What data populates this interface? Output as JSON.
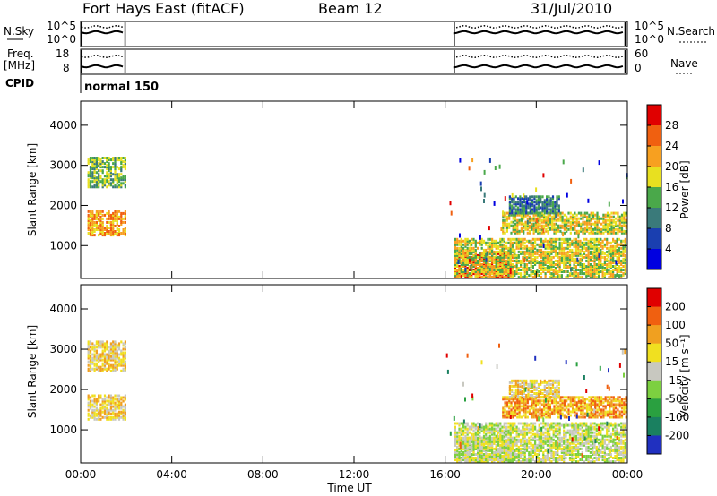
{
  "header": {
    "title": "Fort Hays East (fitACF)",
    "beam": "Beam 12",
    "date": "31/Jul/2010"
  },
  "top_panels": {
    "nsky_label": "N.Sky",
    "nsearch_label": "N.Search",
    "noise_ticks": [
      "10^5",
      "10^0"
    ],
    "freq_label": "Freq.",
    "freq_unit": "[MHz]",
    "freq_ticks": [
      "18",
      "8"
    ],
    "nave_label": "Nave",
    "nave_ticks": [
      "60",
      "0"
    ],
    "cpid_label": "CPID",
    "cpid_value": "normal 150"
  },
  "chart_data": [
    {
      "type": "heatmap",
      "title": "",
      "ylabel": "Slant Range [km]",
      "xlabel": "",
      "x_ticks": [
        "00:00",
        "04:00",
        "08:00",
        "12:00",
        "16:00",
        "20:00",
        "00:00"
      ],
      "y_ticks": [
        1000,
        2000,
        3000,
        4000
      ],
      "xlim_hours": [
        0,
        24
      ],
      "ylim": [
        180,
        4600
      ],
      "colorbar_label": "Power [dB]",
      "colorbar_ticks": [
        4,
        8,
        12,
        16,
        20,
        24,
        28
      ],
      "colorbar_colors": [
        "#0000e0",
        "#1a3fb0",
        "#3a7a7a",
        "#4aa84a",
        "#e8e020",
        "#f7a020",
        "#f06010",
        "#e00000"
      ],
      "echo_regions": [
        {
          "t": [
            0.3,
            2.0
          ],
          "range": [
            1250,
            1850
          ],
          "level": 5
        },
        {
          "t": [
            0.3,
            2.0
          ],
          "range": [
            2450,
            3200
          ],
          "level": 3
        },
        {
          "t": [
            16.4,
            19.0
          ],
          "range": [
            200,
            800
          ],
          "level": 7
        },
        {
          "t": [
            16.4,
            23.9
          ],
          "range": [
            200,
            1150
          ],
          "level": 4
        },
        {
          "t": [
            18.5,
            23.9
          ],
          "range": [
            1300,
            1800
          ],
          "level": 4
        },
        {
          "t": [
            18.8,
            21.0
          ],
          "range": [
            1800,
            2250
          ],
          "level": 2
        }
      ]
    },
    {
      "type": "heatmap",
      "title": "",
      "ylabel": "Slant Range [km]",
      "xlabel": "Time UT",
      "x_ticks": [
        "00:00",
        "04:00",
        "08:00",
        "12:00",
        "16:00",
        "20:00",
        "00:00"
      ],
      "y_ticks": [
        1000,
        2000,
        3000,
        4000
      ],
      "xlim_hours": [
        0,
        24
      ],
      "ylim": [
        180,
        4600
      ],
      "colorbar_label": "Velocity [m s⁻¹]",
      "colorbar_ticks": [
        200,
        100,
        50,
        15,
        -15,
        -50,
        -100,
        -200
      ],
      "colorbar_colors": [
        "#2030c0",
        "#1a8060",
        "#2aa040",
        "#7cd040",
        "#c8c8c0",
        "#f0e020",
        "#f0a020",
        "#f06010",
        "#e00000"
      ],
      "echo_regions": [
        {
          "t": [
            0.3,
            2.0
          ],
          "range": [
            1250,
            1850
          ],
          "level": 5
        },
        {
          "t": [
            0.3,
            2.0
          ],
          "range": [
            2450,
            3200
          ],
          "level": 5
        },
        {
          "t": [
            16.4,
            19.0
          ],
          "range": [
            200,
            800
          ],
          "level": 4
        },
        {
          "t": [
            16.4,
            23.9
          ],
          "range": [
            200,
            1150
          ],
          "level": 4
        },
        {
          "t": [
            18.5,
            23.9
          ],
          "range": [
            1300,
            1800
          ],
          "level": 6
        },
        {
          "t": [
            18.8,
            21.0
          ],
          "range": [
            1800,
            2250
          ],
          "level": 5
        }
      ]
    }
  ]
}
